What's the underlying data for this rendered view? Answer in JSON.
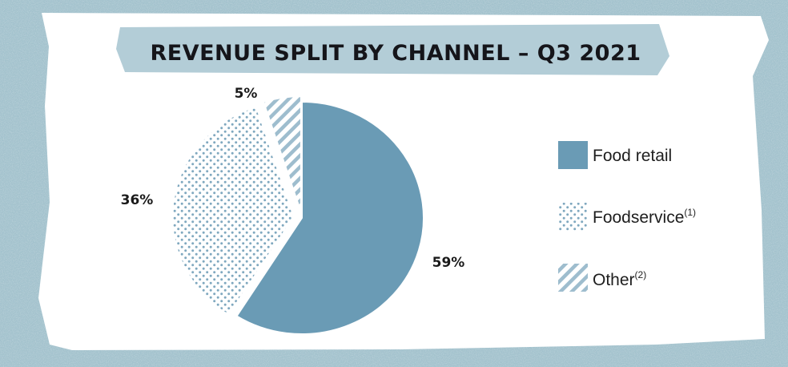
{
  "colors": {
    "background": "#a3c2cd",
    "card": "#ffffff",
    "banner": "#b3cdd7",
    "food_retail": "#6a9bb5",
    "pattern": "#7fa8bf"
  },
  "chart_data": {
    "type": "pie",
    "title": "REVENUE SPLIT BY CHANNEL – Q3 2021",
    "slices": [
      {
        "label": "Food retail",
        "footnote": "",
        "value": 59,
        "display": "59%",
        "fill": "solid",
        "icon": "solid-swatch"
      },
      {
        "label": "Foodservice",
        "footnote": "(1)",
        "value": 36,
        "display": "36%",
        "fill": "dots",
        "icon": "dotted-swatch"
      },
      {
        "label": "Other",
        "footnote": "(2)",
        "value": 5,
        "display": "5%",
        "fill": "stripes",
        "icon": "striped-swatch"
      }
    ],
    "legend_position": "right"
  }
}
